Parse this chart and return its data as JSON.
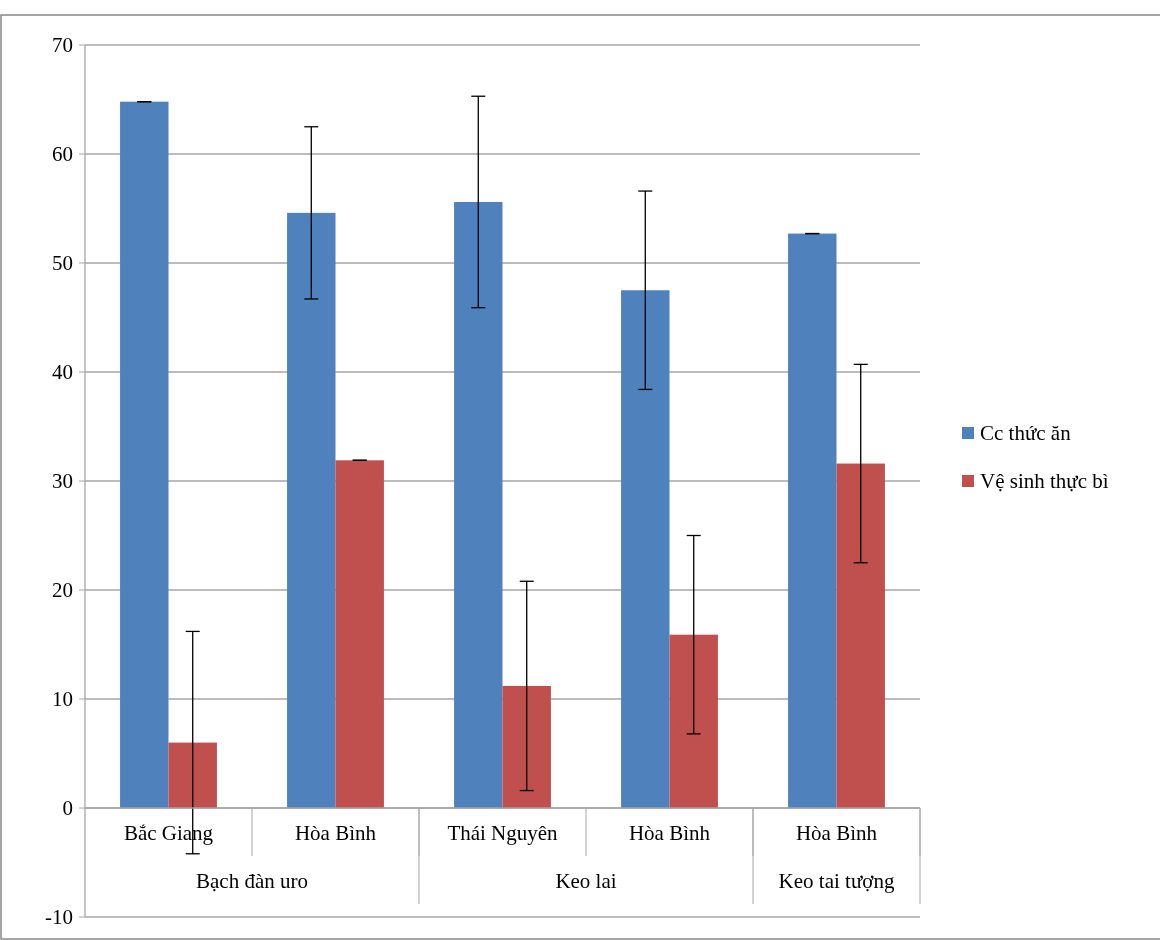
{
  "chart_data": {
    "type": "bar",
    "categories": [
      "Bắc Giang",
      "Hòa Bình",
      "Thái Nguyên",
      "Hòa Bình",
      "Hòa Bình"
    ],
    "annotations": [
      "Bạch đàn uro",
      "Keo lai",
      "Keo tai tượng"
    ],
    "series": [
      {
        "name": "Cc thức ăn",
        "color": "#4f81bd",
        "values": [
          64.8,
          54.6,
          55.6,
          47.5,
          52.7
        ],
        "errors": [
          0,
          7.9,
          9.7,
          9.1,
          0
        ]
      },
      {
        "name": "Vệ sinh thực bì",
        "color": "#c0504d",
        "values": [
          6.0,
          31.9,
          11.2,
          15.9,
          31.6
        ],
        "errors": [
          10.2,
          0,
          9.6,
          9.1,
          9.1
        ]
      }
    ],
    "ylim": [
      -10,
      70
    ],
    "yticks": [
      -10,
      0,
      10,
      20,
      30,
      40,
      50,
      60,
      70
    ],
    "grid": "y",
    "legend": "right"
  }
}
